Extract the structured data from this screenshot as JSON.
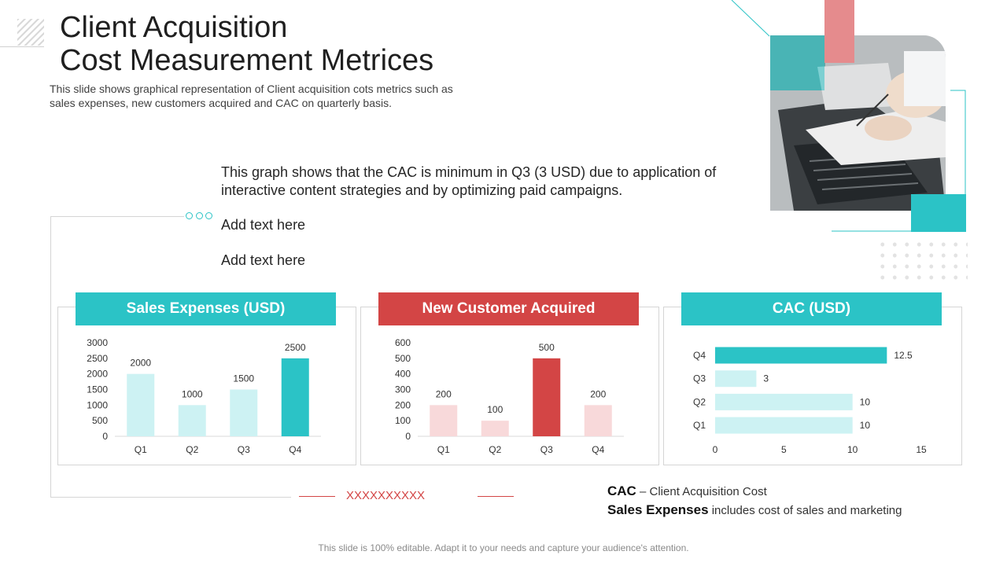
{
  "title_line1": "Client Acquisition",
  "title_line2": "Cost Measurement Metrices",
  "subtitle": "This slide shows graphical representation of Client acquisition cots metrics such as sales expenses, new customers acquired and CAC on quarterly basis.",
  "note": "This graph shows that the CAC is minimum in Q3 (3 USD) due to application of interactive content strategies and by optimizing paid campaigns.",
  "add_text_1": "Add text here",
  "add_text_2": "Add text here",
  "legend": {
    "cac_term": "CAC",
    "cac_def": " – Client Acquisition Cost",
    "se_term": "Sales Expenses",
    "se_def": " includes cost of sales and marketing"
  },
  "divider_marks": "XXXXXXXXXX",
  "footer": "This slide is 100% editable. Adapt it to your needs and capture your audience's attention.",
  "colors": {
    "teal": "#2bc3c6",
    "light_teal": "#cdf2f3",
    "red": "#d34545",
    "light_red": "#f8d9da"
  },
  "chart_data": [
    {
      "type": "bar",
      "title": "Sales Expenses (USD)",
      "categories": [
        "Q1",
        "Q2",
        "Q3",
        "Q4"
      ],
      "values": [
        2000,
        1000,
        1500,
        2500
      ],
      "ylim": [
        0,
        3000
      ],
      "yticks": [
        0,
        500,
        1000,
        1500,
        2000,
        2500,
        3000
      ],
      "highlight_index": 3
    },
    {
      "type": "bar",
      "title": "New Customer Acquired",
      "categories": [
        "Q1",
        "Q2",
        "Q3",
        "Q4"
      ],
      "values": [
        200,
        100,
        500,
        200
      ],
      "ylim": [
        0,
        600
      ],
      "yticks": [
        0,
        100,
        200,
        300,
        400,
        500,
        600
      ],
      "highlight_index": 2
    },
    {
      "type": "bar",
      "orientation": "horizontal",
      "title": "CAC (USD)",
      "categories": [
        "Q1",
        "Q2",
        "Q3",
        "Q4"
      ],
      "values": [
        10,
        10,
        3,
        12.5
      ],
      "xlim": [
        0,
        15
      ],
      "xticks": [
        0,
        5,
        10,
        15
      ],
      "highlight_index": 3
    }
  ]
}
